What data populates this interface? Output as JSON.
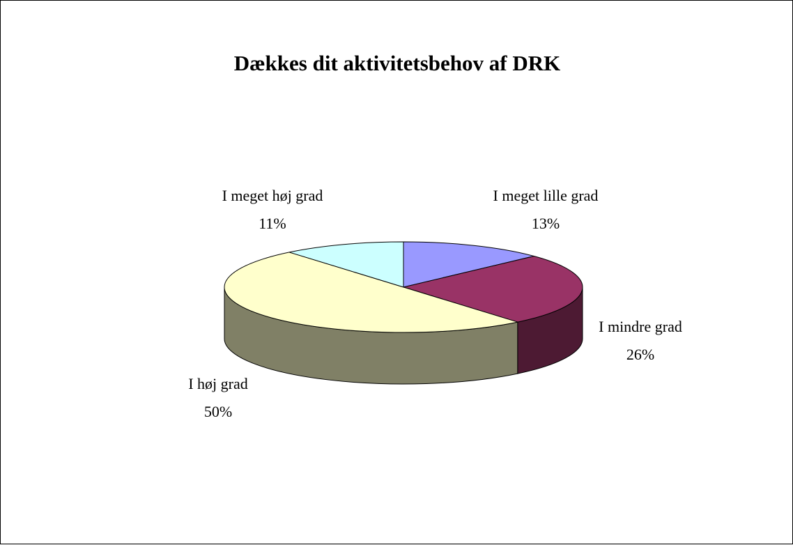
{
  "chart_data": {
    "type": "pie",
    "title": "Dækkes dit aktivitetsbehov af DRK",
    "three_d": true,
    "slices": [
      {
        "label": "I meget lille grad",
        "value": 13,
        "value_label": "13%",
        "color": "#9999FF"
      },
      {
        "label": "I mindre grad",
        "value": 26,
        "value_label": "26%",
        "color": "#993366"
      },
      {
        "label": "I høj grad",
        "value": 50,
        "value_label": "50%",
        "color": "#FFFFCC"
      },
      {
        "label": "I meget høj grad",
        "value": 11,
        "value_label": "11%",
        "color": "#CCFFFF"
      }
    ]
  }
}
